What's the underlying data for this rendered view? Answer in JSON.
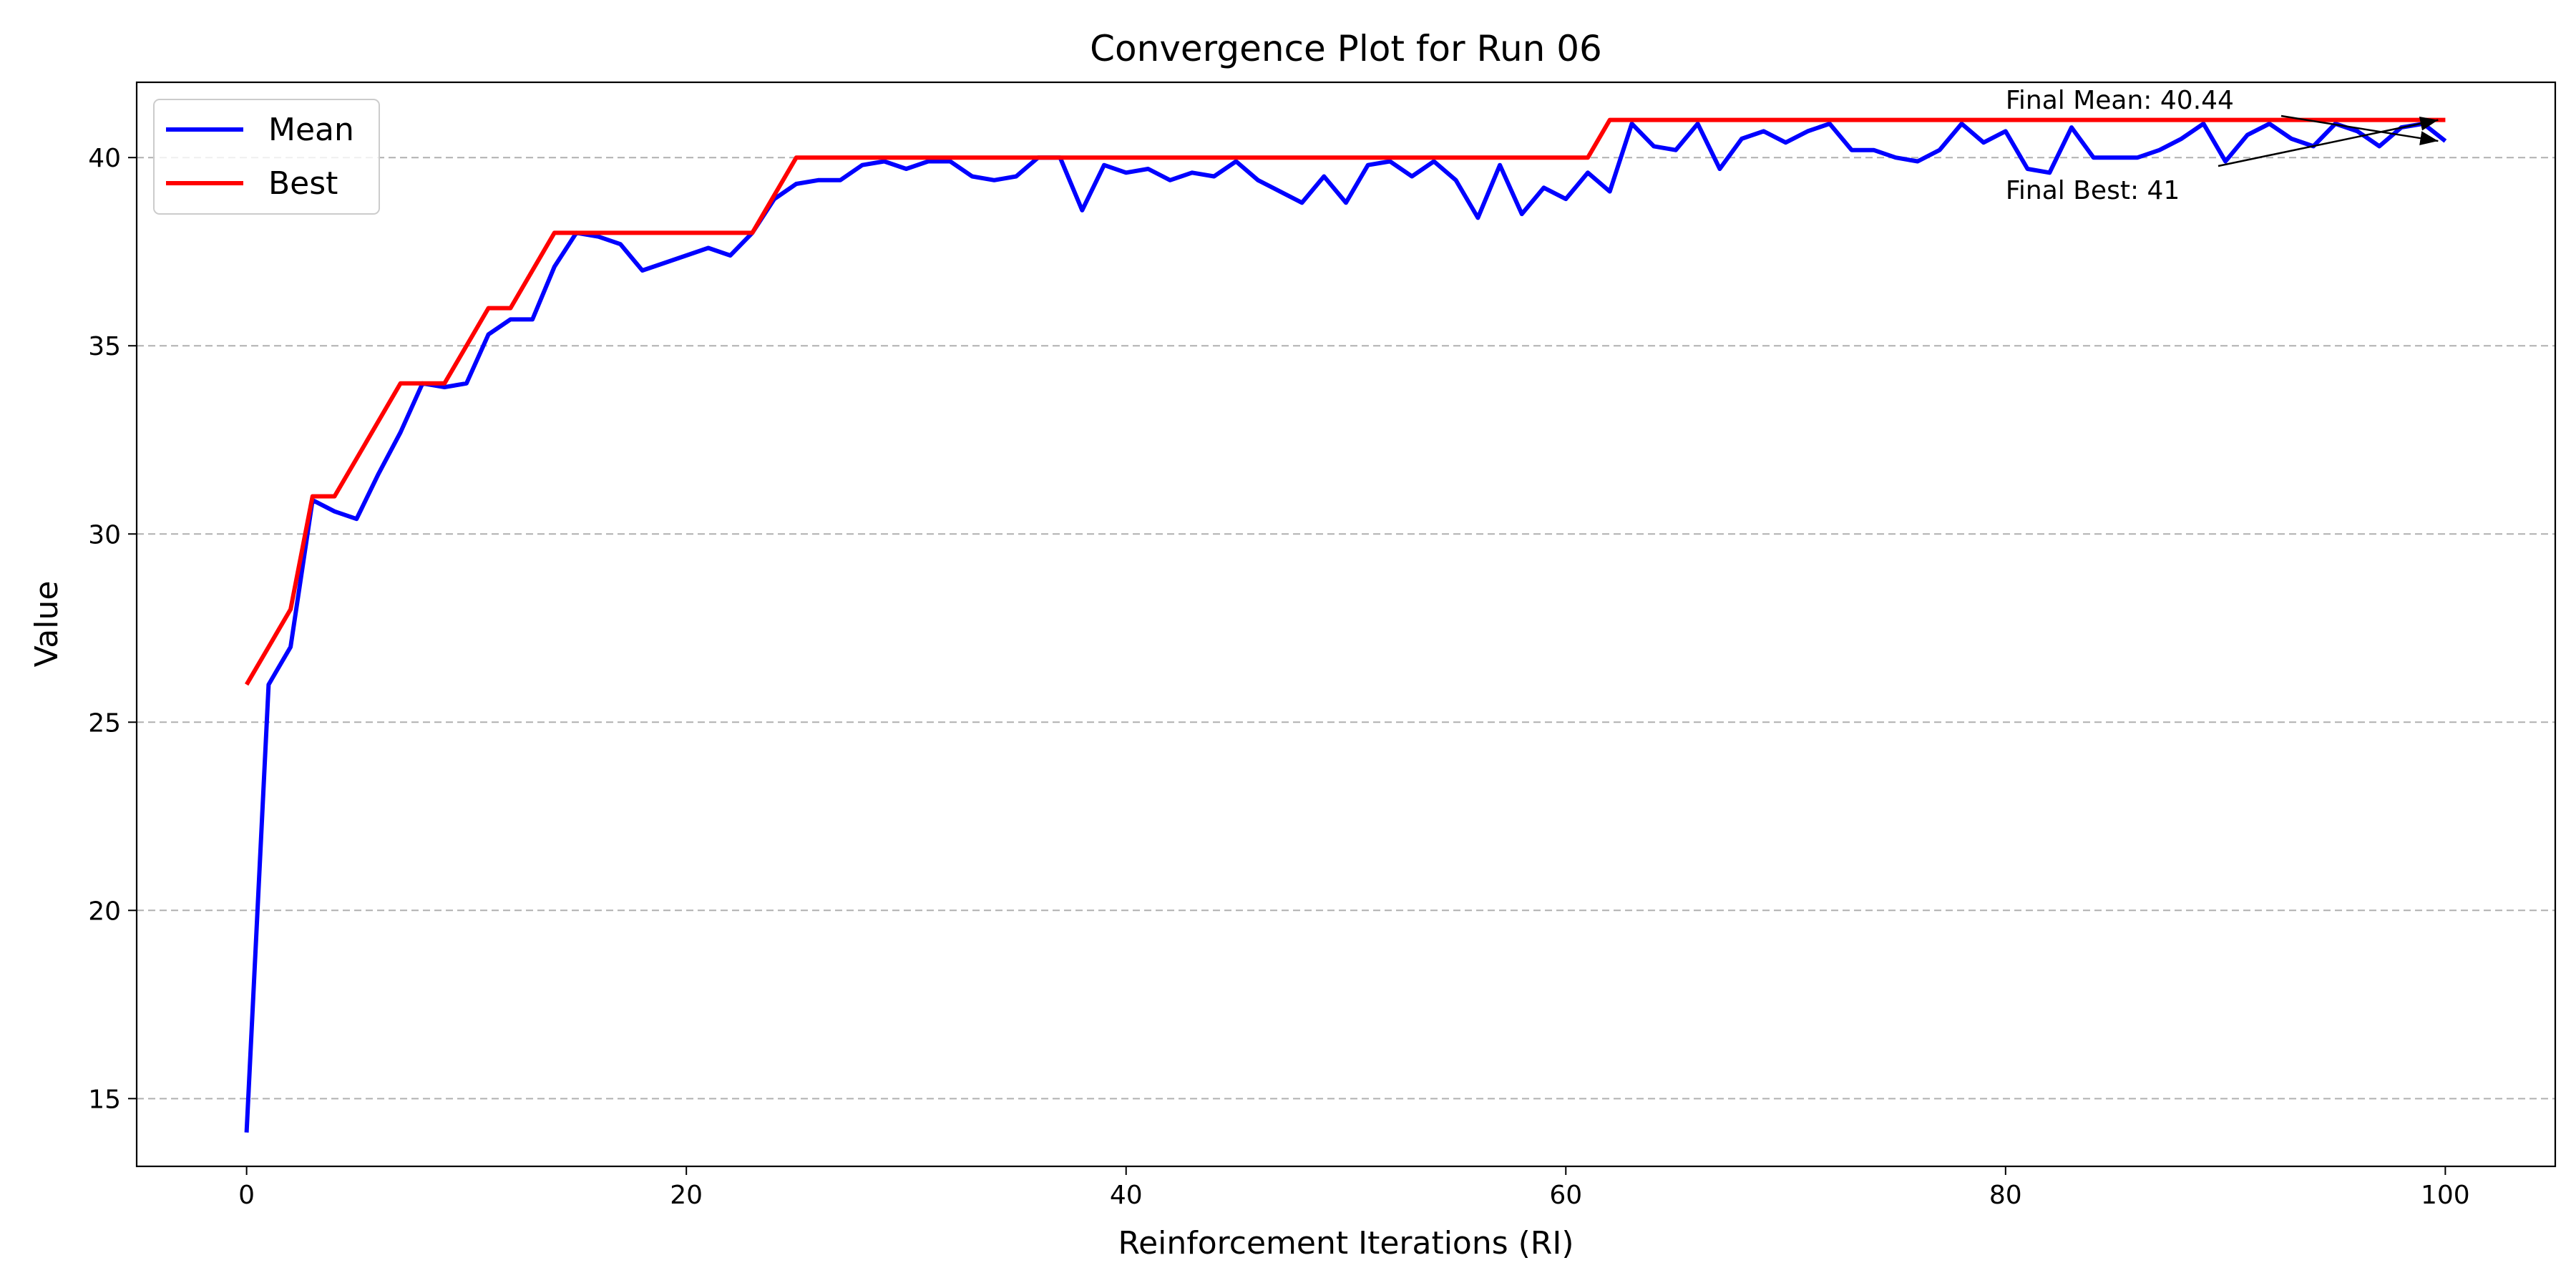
{
  "chart_data": {
    "type": "line",
    "title": "Convergence Plot for Run 06",
    "xlabel": "Reinforcement Iterations (RI)",
    "ylabel": "Value",
    "xlim": [
      -5,
      105
    ],
    "ylim": [
      13.2,
      42.0
    ],
    "xticks": [
      0,
      20,
      40,
      60,
      80,
      100
    ],
    "yticks": [
      15,
      20,
      25,
      30,
      35,
      40
    ],
    "grid": "y-dashed",
    "legend_position": "top-left",
    "x": [
      0,
      1,
      2,
      3,
      4,
      5,
      6,
      7,
      8,
      9,
      10,
      11,
      12,
      13,
      14,
      15,
      16,
      17,
      18,
      19,
      20,
      21,
      22,
      23,
      24,
      25,
      26,
      27,
      28,
      29,
      30,
      31,
      32,
      33,
      34,
      35,
      36,
      37,
      38,
      39,
      40,
      41,
      42,
      43,
      44,
      45,
      46,
      47,
      48,
      49,
      50,
      51,
      52,
      53,
      54,
      55,
      56,
      57,
      58,
      59,
      60,
      61,
      62,
      63,
      64,
      65,
      66,
      67,
      68,
      69,
      70,
      71,
      72,
      73,
      74,
      75,
      76,
      77,
      78,
      79,
      80,
      81,
      82,
      83,
      84,
      85,
      86,
      87,
      88,
      89,
      90,
      91,
      92,
      93,
      94,
      95,
      96,
      97,
      98,
      99,
      100
    ],
    "series": [
      {
        "name": "Mean",
        "color": "#0000ff",
        "values": [
          14.1,
          26.0,
          27.0,
          30.9,
          30.6,
          30.4,
          31.6,
          32.7,
          34.0,
          33.9,
          34.0,
          35.3,
          35.7,
          35.7,
          37.1,
          38.0,
          37.9,
          37.7,
          37.0,
          37.2,
          37.4,
          37.6,
          37.4,
          38.0,
          38.9,
          39.3,
          39.4,
          39.4,
          39.8,
          39.9,
          39.7,
          39.9,
          39.9,
          39.5,
          39.4,
          39.5,
          40.0,
          40.0,
          38.6,
          39.8,
          39.6,
          39.7,
          39.4,
          39.6,
          39.5,
          39.9,
          39.4,
          39.1,
          38.8,
          39.5,
          38.8,
          39.8,
          39.9,
          39.5,
          39.9,
          39.4,
          38.4,
          39.8,
          38.5,
          39.2,
          38.9,
          39.6,
          39.1,
          40.9,
          40.3,
          40.2,
          40.9,
          39.7,
          40.5,
          40.7,
          40.4,
          40.7,
          40.9,
          40.2,
          40.2,
          40.0,
          39.9,
          40.2,
          40.9,
          40.4,
          40.7,
          39.7,
          39.6,
          40.8,
          40.0,
          40.0,
          40.0,
          40.2,
          40.5,
          40.9,
          39.9,
          40.6,
          40.9,
          40.5,
          40.3,
          40.9,
          40.7,
          40.3,
          40.8,
          40.9,
          40.44
        ]
      },
      {
        "name": "Best",
        "color": "#ff0000",
        "values": [
          26,
          27,
          28,
          31,
          31,
          32,
          33,
          34,
          34,
          34,
          35,
          36,
          36,
          37,
          38,
          38,
          38,
          38,
          38,
          38,
          38,
          38,
          38,
          38,
          39,
          40,
          40,
          40,
          40,
          40,
          40,
          40,
          40,
          40,
          40,
          40,
          40,
          40,
          40,
          40,
          40,
          40,
          40,
          40,
          40,
          40,
          40,
          40,
          40,
          40,
          40,
          40,
          40,
          40,
          40,
          40,
          40,
          40,
          40,
          40,
          40,
          40,
          41,
          41,
          41,
          41,
          41,
          41,
          41,
          41,
          41,
          41,
          41,
          41,
          41,
          41,
          41,
          41,
          41,
          41,
          41,
          41,
          41,
          41,
          41,
          41,
          41,
          41,
          41,
          41,
          41,
          41,
          41,
          41,
          41,
          41,
          41,
          41,
          41,
          41,
          41
        ]
      }
    ],
    "annotations": [
      {
        "text": "Final Mean: 40.44",
        "xy": [
          100,
          40.44
        ],
        "xytext": [
          80,
          41.3
        ]
      },
      {
        "text": "Final Best: 41",
        "xy": [
          100,
          41
        ],
        "xytext": [
          80,
          38.9
        ]
      }
    ]
  }
}
